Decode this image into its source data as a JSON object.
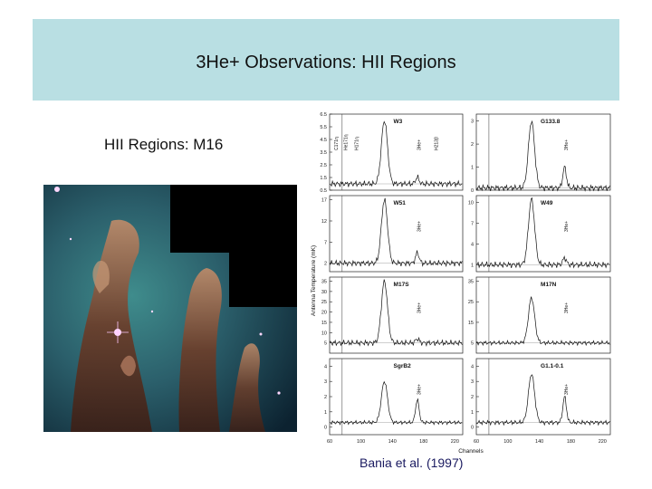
{
  "slide": {
    "title": "3He+ Observations: HII Regions",
    "subtitle": "HII Regions: M16",
    "citation": "Bania et al. (1997)",
    "title_bar_color": "#b9dfe3"
  },
  "photo": {
    "icon": "eagle-nebula-pillars-image"
  },
  "chart_data": {
    "type": "line",
    "xlabel": "Channels",
    "ylabel": "Antenna Temperature (mK)",
    "x_ticks": [
      60,
      100,
      140,
      180,
      220
    ],
    "line_labels": [
      "C171η",
      "He171η",
      "H171η",
      "3He+",
      "H213β"
    ],
    "panels": [
      {
        "name": "W3",
        "yticks": [
          "0.5",
          "1.5",
          "2.5",
          "3.5",
          "4.5",
          "5.5",
          "6.5"
        ],
        "ylim": [
          0.5,
          6.5
        ],
        "peak": 6.0,
        "he3": 1.5,
        "base": 1.0,
        "labels": [
          "C171η",
          "He171η",
          "H171η",
          "3He+",
          "H213β"
        ]
      },
      {
        "name": "G133.8",
        "yticks": [
          "0",
          "1",
          "2",
          "3"
        ],
        "ylim": [
          0,
          3.3
        ],
        "peak": 3.0,
        "he3": 1.0,
        "base": 0.1,
        "labels": [
          "3He+"
        ]
      },
      {
        "name": "W51",
        "yticks": [
          "2",
          "7",
          "12",
          "17"
        ],
        "ylim": [
          0,
          18
        ],
        "peak": 17,
        "he3": 4.5,
        "base": 2,
        "labels": [
          "3He+"
        ]
      },
      {
        "name": "W49",
        "yticks": [
          "1",
          "4",
          "7",
          "10"
        ],
        "ylim": [
          0,
          11
        ],
        "peak": 10.5,
        "he3": 2.0,
        "base": 1,
        "labels": [
          "3He+"
        ]
      },
      {
        "name": "M17S",
        "yticks": [
          "5",
          "10",
          "15",
          "20",
          "25",
          "30",
          "35"
        ],
        "ylim": [
          0,
          37
        ],
        "peak": 35,
        "he3": 7,
        "base": 5,
        "labels": [
          "3He+"
        ]
      },
      {
        "name": "M17N",
        "yticks": [
          "5",
          "15",
          "25",
          "35"
        ],
        "ylim": [
          0,
          37
        ],
        "peak": 27,
        "he3": 5,
        "base": 5,
        "labels": [
          "3He+"
        ]
      },
      {
        "name": "SgrB2",
        "yticks": [
          "0",
          "1",
          "2",
          "3",
          "4"
        ],
        "ylim": [
          -0.5,
          4.5
        ],
        "peak": 3.0,
        "he3": 1.8,
        "base": 0.3,
        "labels": [
          "3He+"
        ]
      },
      {
        "name": "G1.1-0.1",
        "yticks": [
          "0",
          "1",
          "2",
          "3",
          "4"
        ],
        "ylim": [
          -0.5,
          4.5
        ],
        "peak": 3.5,
        "he3": 2.0,
        "base": 0.3,
        "labels": [
          "3He+"
        ]
      }
    ]
  }
}
